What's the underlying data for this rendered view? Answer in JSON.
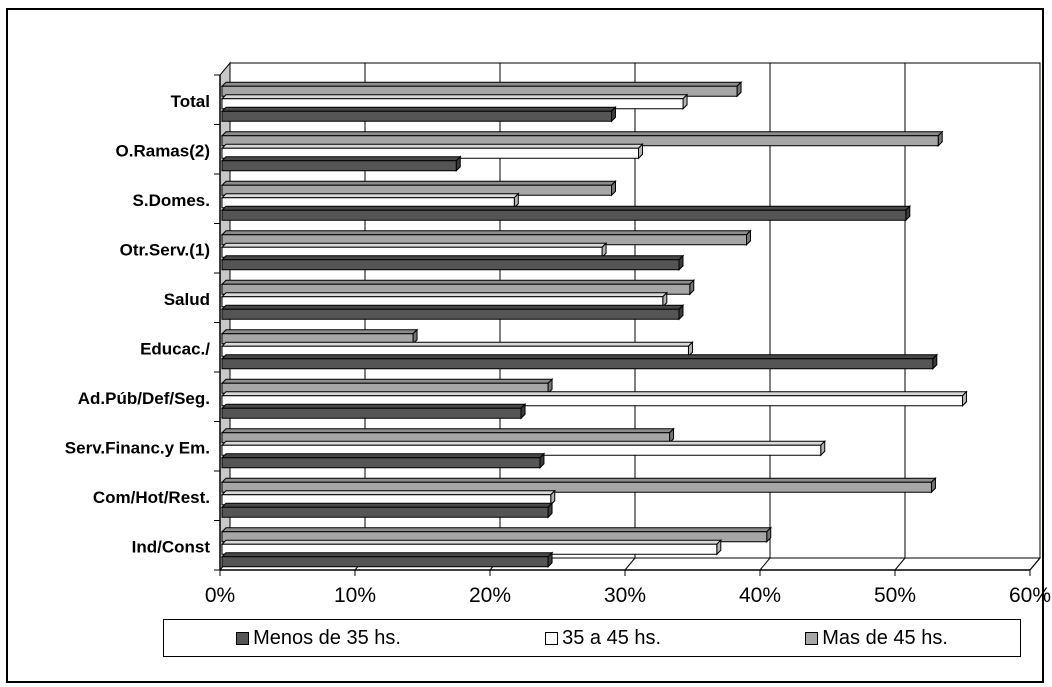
{
  "chart_data": {
    "type": "bar",
    "orientation": "horizontal",
    "categories": [
      "Total",
      "O.Ramas(2)",
      "S.Domes.",
      "Otr.Serv.(1)",
      "Salud",
      "Educac./",
      "Ad.Púb/Def/Seg.",
      "Serv.Financ.y Em.",
      "Com/Hot/Rest.",
      "Ind/Const"
    ],
    "series": [
      {
        "name": "Menos de 35 hs.",
        "color": "#555555",
        "values": [
          29,
          17.5,
          50.8,
          34,
          34,
          52.8,
          22.3,
          23.7,
          24.3,
          24.3
        ]
      },
      {
        "name": "35 a 45 hs.",
        "color": "#ffffff",
        "values": [
          34.3,
          31,
          21.8,
          28.3,
          32.8,
          34.7,
          55,
          44.5,
          24.5,
          36.8
        ]
      },
      {
        "name": "Mas de 45 hs.",
        "color": "#a6a6a6",
        "values": [
          38.3,
          53.2,
          29,
          39,
          34.8,
          14.3,
          24.3,
          33.3,
          52.7,
          40.5
        ]
      }
    ],
    "xticks": [
      "0%",
      "10%",
      "20%",
      "30%",
      "40%",
      "50%",
      "60%"
    ],
    "xlim": [
      0,
      60
    ],
    "grid": true,
    "legend_position": "bottom"
  }
}
